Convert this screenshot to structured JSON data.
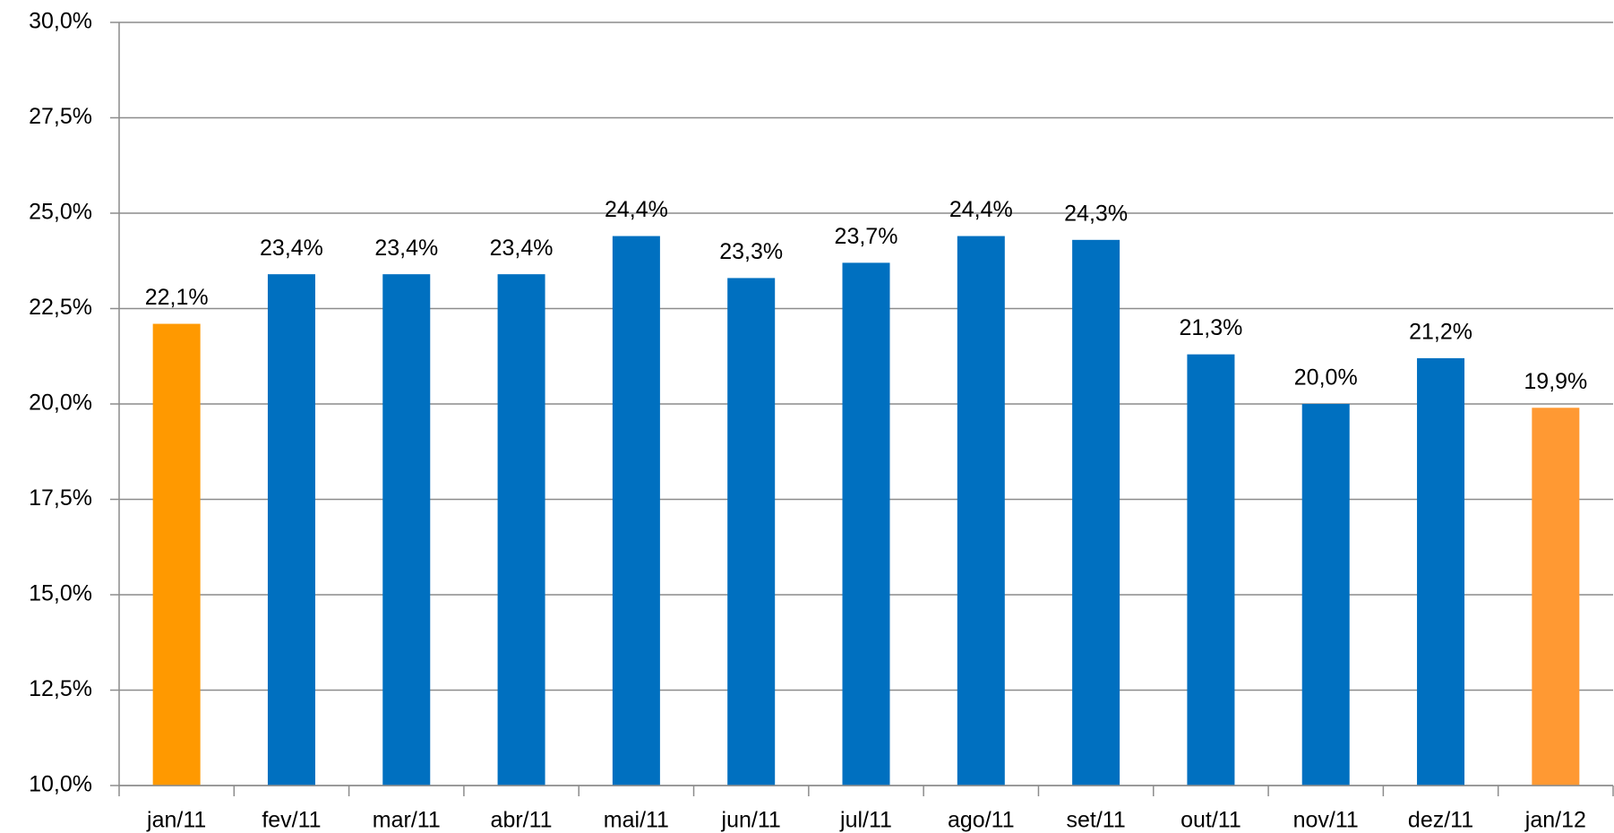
{
  "chart_data": {
    "type": "bar",
    "categories": [
      "jan/11",
      "fev/11",
      "mar/11",
      "abr/11",
      "mai/11",
      "jun/11",
      "jul/11",
      "ago/11",
      "set/11",
      "out/11",
      "nov/11",
      "dez/11",
      "jan/12"
    ],
    "values": [
      22.1,
      23.4,
      23.4,
      23.4,
      24.4,
      23.3,
      23.7,
      24.4,
      24.3,
      21.3,
      20.0,
      21.2,
      19.9
    ],
    "value_labels": [
      "22,1%",
      "23,4%",
      "23,4%",
      "23,4%",
      "24,4%",
      "23,3%",
      "23,7%",
      "24,4%",
      "24,3%",
      "21,3%",
      "20,0%",
      "21,2%",
      "19,9%"
    ],
    "colors": [
      "#ff9900",
      "#0070c0",
      "#0070c0",
      "#0070c0",
      "#0070c0",
      "#0070c0",
      "#0070c0",
      "#0070c0",
      "#0070c0",
      "#0070c0",
      "#0070c0",
      "#0070c0",
      "#ff9933"
    ],
    "ylim": [
      10,
      30
    ],
    "yticks": [
      {
        "value": 10,
        "label": "10,0%"
      },
      {
        "value": 12.5,
        "label": "12,5%"
      },
      {
        "value": 15,
        "label": "15,0%"
      },
      {
        "value": 17.5,
        "label": "17,5%"
      },
      {
        "value": 20,
        "label": "20,0%"
      },
      {
        "value": 22.5,
        "label": "22,5%"
      },
      {
        "value": 25,
        "label": "25,0%"
      },
      {
        "value": 27.5,
        "label": "27,5%"
      },
      {
        "value": 30,
        "label": "30,0%"
      }
    ],
    "grid": true
  }
}
